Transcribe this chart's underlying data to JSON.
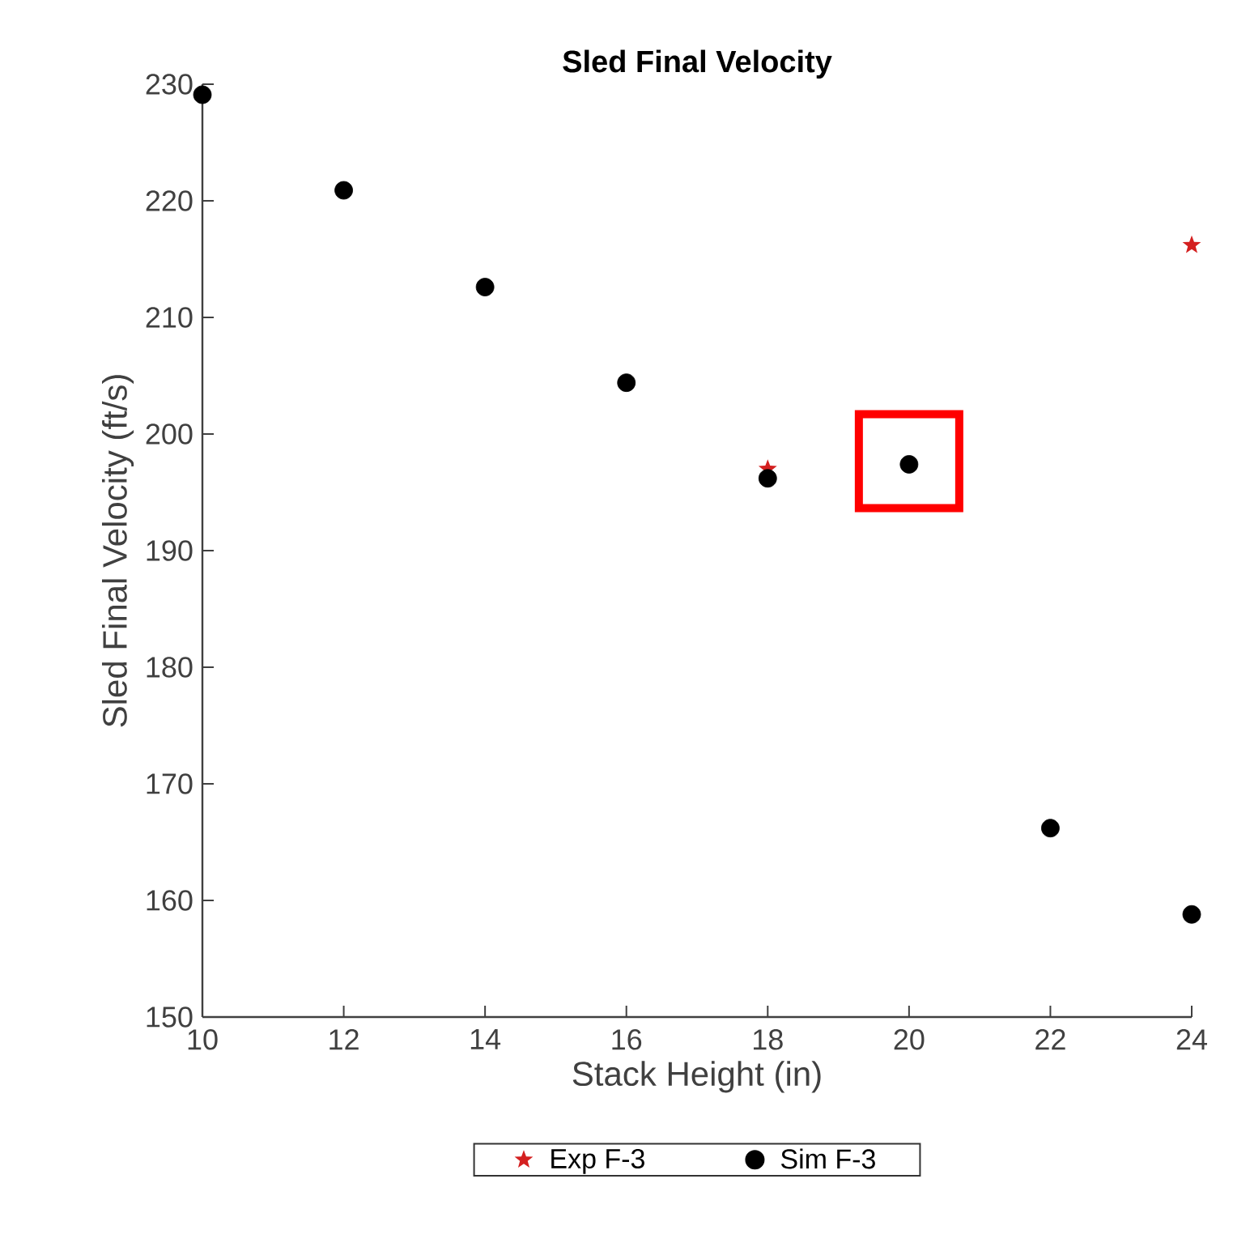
{
  "chart_data": {
    "type": "scatter",
    "title": "Sled Final Velocity",
    "xlabel": "Stack Height (in)",
    "ylabel": "Sled Final Velocity (ft/s)",
    "xlim": [
      10,
      24
    ],
    "xticks": [
      10,
      12,
      14,
      16,
      18,
      20,
      22,
      24
    ],
    "ylim": [
      150,
      230
    ],
    "yticks": [
      150,
      160,
      170,
      180,
      190,
      200,
      210,
      220,
      230
    ],
    "grid": false,
    "legend": "bottom",
    "series": [
      {
        "name": "Exp F-3",
        "color": "#d42020",
        "marker": "star",
        "x": [
          18,
          24
        ],
        "values": [
          197.0,
          216.2
        ]
      },
      {
        "name": "Sim F-3",
        "color": "#000000",
        "marker": "circle",
        "x": [
          10,
          12,
          14,
          16,
          18,
          20,
          22,
          24
        ],
        "values": [
          229.1,
          220.9,
          212.6,
          204.4,
          196.2,
          197.4,
          166.2,
          158.8
        ]
      }
    ]
  }
}
